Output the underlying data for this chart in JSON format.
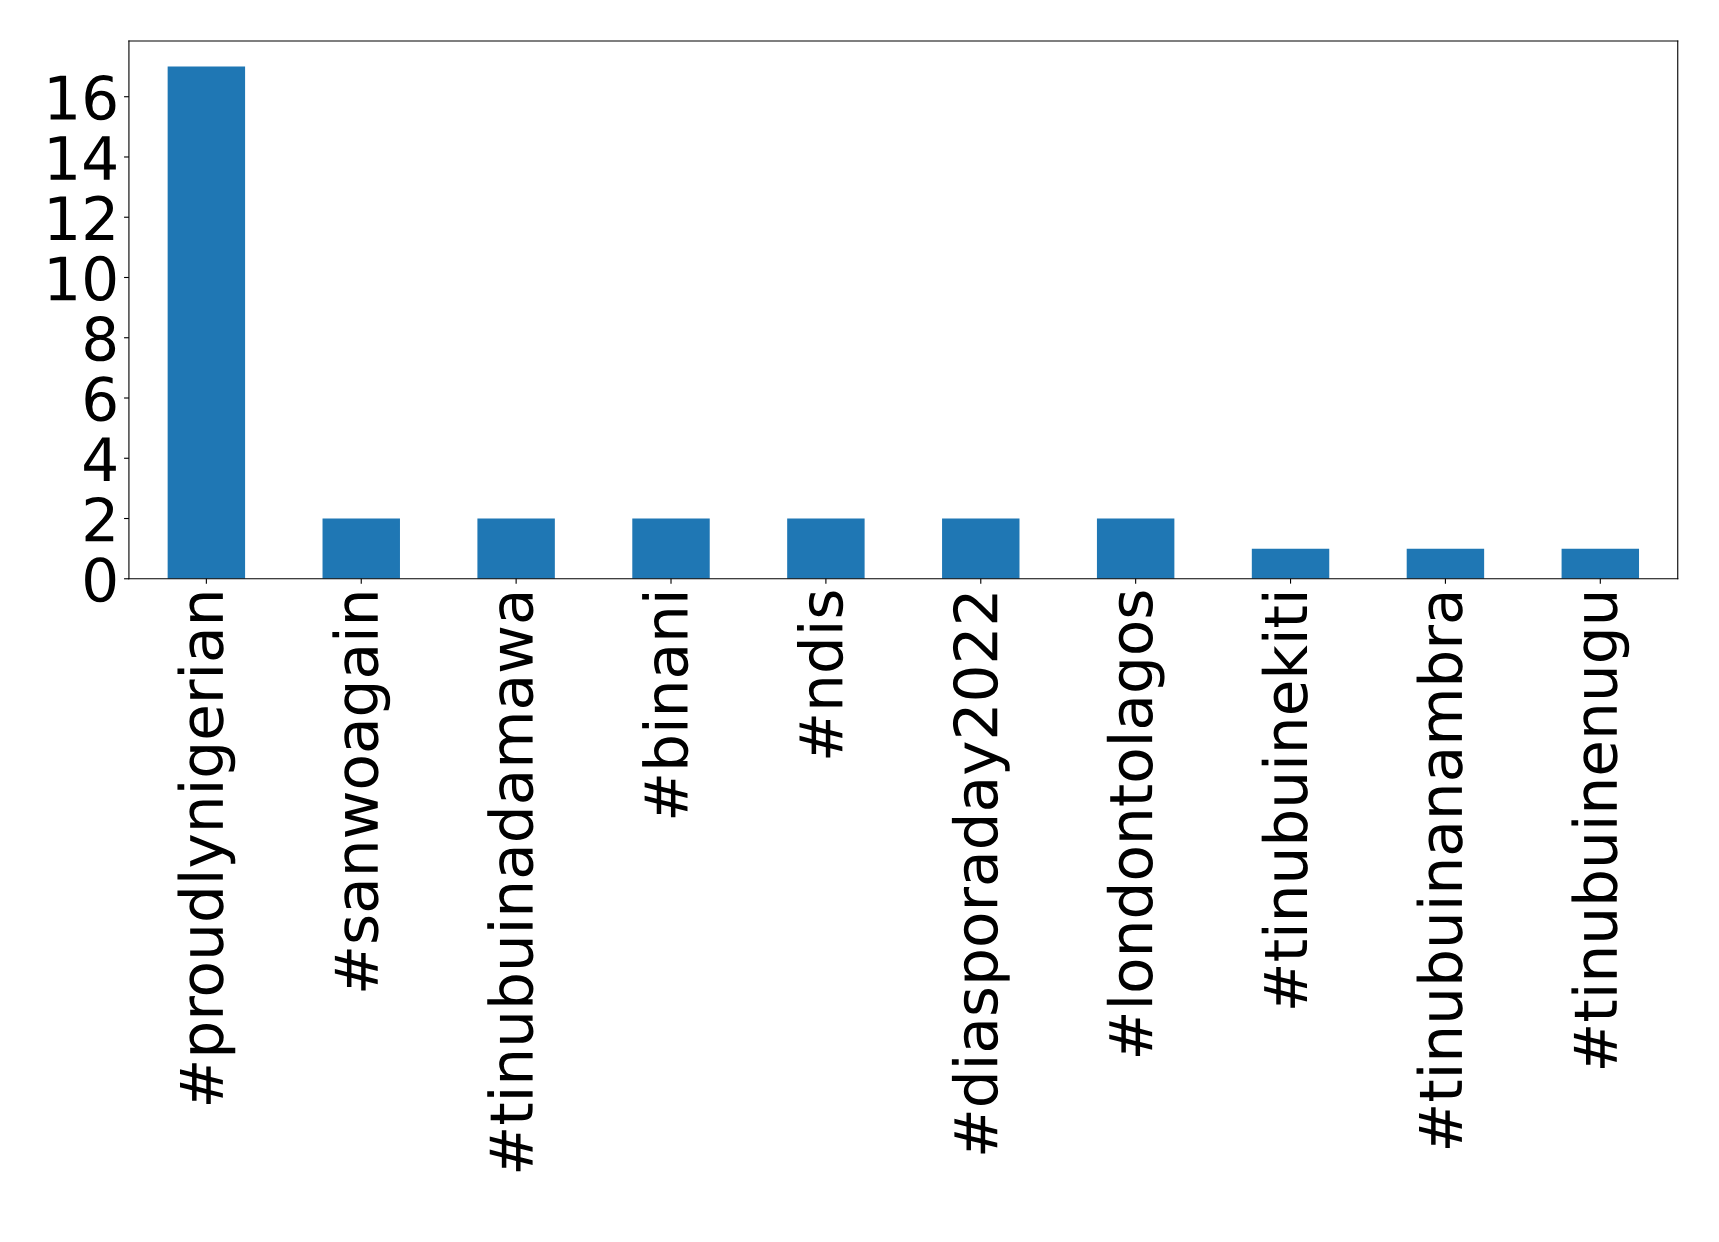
{
  "chart_data": {
    "type": "bar",
    "categories": [
      "#proudlynigerian",
      "#sanwoagain",
      "#tinubuinadamawa",
      "#binani",
      "#ndis",
      "#diasporaday2022",
      "#londontolagos",
      "#tinubuinekiti",
      "#tinubuinanambra",
      "#tinubuinenugu"
    ],
    "values": [
      17,
      2,
      2,
      2,
      2,
      2,
      2,
      1,
      1,
      1
    ],
    "color": "#1f77b4",
    "ylim": [
      0,
      17.85
    ],
    "yticks": [
      0,
      2,
      4,
      6,
      8,
      10,
      12,
      14,
      16
    ],
    "grid": false
  }
}
